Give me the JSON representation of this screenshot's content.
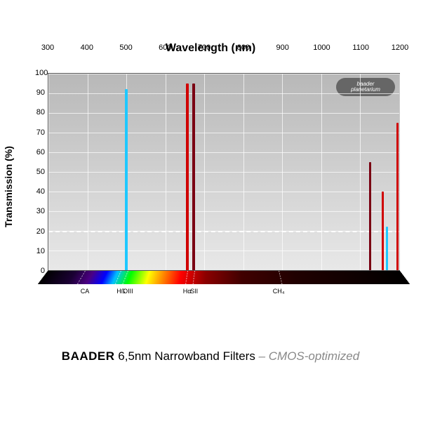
{
  "title_top": "Wavelength (nm)",
  "y_axis_label": "Transmission (%)",
  "bottom_title": {
    "brand": "BAADER",
    "spec": "6,5nm Narrowband Filters",
    "sub": "– CMOS-optimized"
  },
  "logo": {
    "line1": "baader",
    "line2": "planetarium"
  },
  "chart": {
    "xlim": [
      300,
      1200
    ],
    "ylim": [
      0,
      100
    ],
    "x_ticks": [
      300,
      400,
      500,
      600,
      700,
      800,
      900,
      1000,
      1100,
      1200
    ],
    "y_ticks": [
      0,
      10,
      20,
      30,
      40,
      50,
      60,
      70,
      80,
      90,
      100
    ],
    "dashed_y": 20,
    "background_gradient": {
      "top": "#b8b8b8",
      "bottom": "#e8e8e8"
    },
    "grid_color": "#ffffff",
    "peaks": [
      {
        "name": "OIII",
        "x": 500,
        "height": 92,
        "color": "#1ec8ff",
        "width": 4
      },
      {
        "name": "Ha",
        "x": 656,
        "height": 95,
        "color": "#d00000",
        "width": 4
      },
      {
        "name": "SII",
        "x": 672,
        "height": 95,
        "color": "#7a0012",
        "width": 4
      },
      {
        "name": "sec1",
        "x": 1125,
        "height": 55,
        "color": "#7a0012",
        "width": 3
      },
      {
        "name": "sec2",
        "x": 1158,
        "height": 40,
        "color": "#d00000",
        "width": 3
      },
      {
        "name": "sec3",
        "x": 1168,
        "height": 22,
        "color": "#1ec8ff",
        "width": 3
      },
      {
        "name": "sec4",
        "x": 1195,
        "height": 75,
        "color": "#d00000",
        "width": 3
      }
    ],
    "spectrum_labels": [
      {
        "text": "CA",
        "x": 395
      },
      {
        "text": "Hß",
        "x": 487
      },
      {
        "text": "OIII",
        "x": 505
      },
      {
        "text": "Hα",
        "x": 656
      },
      {
        "text": "SII",
        "x": 674
      },
      {
        "text": "CH₄",
        "x": 890
      }
    ],
    "spectrum_dashes": [
      395,
      487,
      505,
      656,
      674,
      890
    ]
  }
}
